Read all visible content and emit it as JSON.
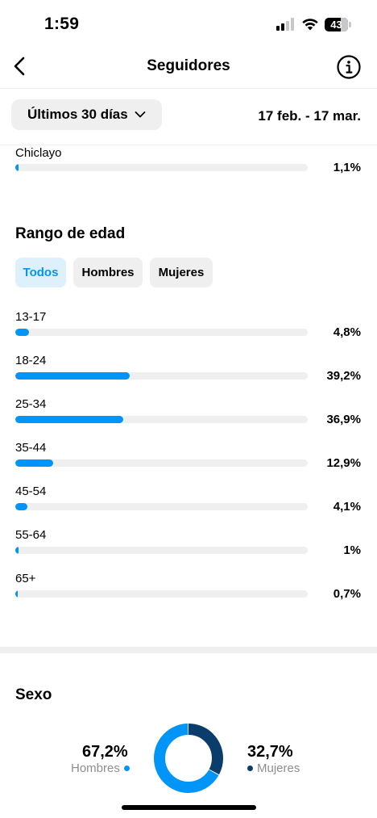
{
  "status_bar": {
    "time": "1:59",
    "battery": "43"
  },
  "header": {
    "title": "Seguidores"
  },
  "filter": {
    "range_button": "Últimos 30 días",
    "date_range": "17 feb. - 17 mar."
  },
  "city": {
    "label": "Chiclayo",
    "value": "1,1%",
    "fraction": 0.011
  },
  "age": {
    "title": "Rango de edad",
    "tabs": [
      "Todos",
      "Hombres",
      "Mujeres"
    ],
    "active_tab": "Todos",
    "rows": [
      {
        "label": "13-17",
        "value": "4,8%",
        "fraction": 0.048
      },
      {
        "label": "18-24",
        "value": "39,2%",
        "fraction": 0.392
      },
      {
        "label": "25-34",
        "value": "36,9%",
        "fraction": 0.369
      },
      {
        "label": "35-44",
        "value": "12,9%",
        "fraction": 0.129
      },
      {
        "label": "45-54",
        "value": "4,1%",
        "fraction": 0.041
      },
      {
        "label": "55-64",
        "value": "1%",
        "fraction": 0.01
      },
      {
        "label": "65+",
        "value": "0,7%",
        "fraction": 0.007
      }
    ]
  },
  "gender": {
    "title": "Sexo",
    "men": {
      "value": "67,2%",
      "label": "Hombres",
      "fraction": 0.672,
      "color": "#0095f6"
    },
    "women": {
      "value": "32,7%",
      "label": "Mujeres",
      "fraction": 0.327,
      "color": "#0a3d6b"
    }
  },
  "colors": {
    "accent": "#0095f6",
    "track": "#efefef",
    "dark_blue": "#0a3d6b"
  }
}
